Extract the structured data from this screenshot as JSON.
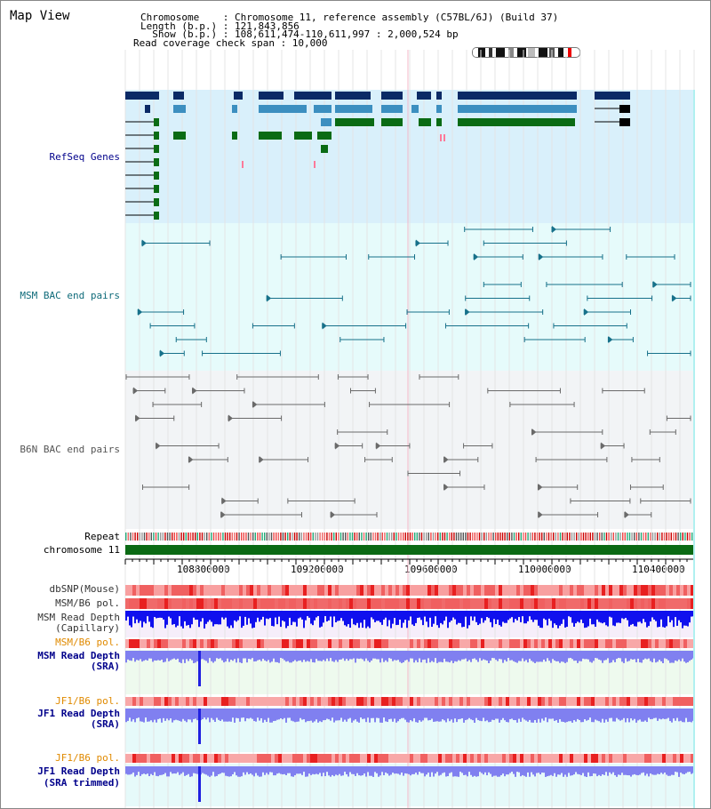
{
  "header": {
    "title": "Map View",
    "chromosome_line": "Chromosome    : Chromosome 11, reference assembly (C57BL/6J) (Build 37)",
    "length_line": "Length (b.p.) : 121,843,856",
    "show_line": "  Show (b.p.) : 108,611,474-110,611,997 : 2,000,524 bp",
    "coverage_line": "Read coverage check span : 10,000"
  },
  "tracks": {
    "refseq": "RefSeq Genes",
    "msm_bac": "MSM BAC end pairs",
    "b6n_bac": "B6N BAC end pairs",
    "repeat": "Repeat",
    "chromosome": "chromosome 11",
    "dbsnp": "dbSNP(Mouse)",
    "msm_pol_1": "MSM/B6 pol.",
    "msm_depth_cap_1": "MSM Read Depth",
    "msm_depth_cap_2": "(Capillary)",
    "msm_pol_2": "MSM/B6 pol.",
    "msm_depth_sra_1": "MSM Read Depth",
    "msm_depth_sra_2": "(SRA)",
    "jf1_pol_1": "JF1/B6 pol.",
    "jf1_depth_1": "JF1 Read Depth",
    "jf1_depth_2": "(SRA)",
    "jf1_pol_2": "JF1/B6 pol.",
    "jf1_trim_1": "JF1 Read Depth",
    "jf1_trim_2": "(SRA trimmed)"
  },
  "axis": {
    "ticks": [
      "108800000",
      "109200000",
      "109600000",
      "110000000",
      "110400000"
    ]
  },
  "colors": {
    "refseq_bg": "#d9f0fb",
    "msm_bg": "#e6fbfb",
    "b6n_bg": "#f2f4f6",
    "dark_navy": "#0b2a66",
    "steel_blue": "#3c8fc0",
    "gene_green": "#0a6b14",
    "bac_teal": "#17718a",
    "bac_grey": "#6a6a6a",
    "chrom_green": "#0b6a14",
    "depth_blue": "#1010ee",
    "sra_blue": "#8080f0",
    "label_navy": "#00008b",
    "label_teal": "#0f6b7a",
    "label_orange": "#e08a00"
  }
}
